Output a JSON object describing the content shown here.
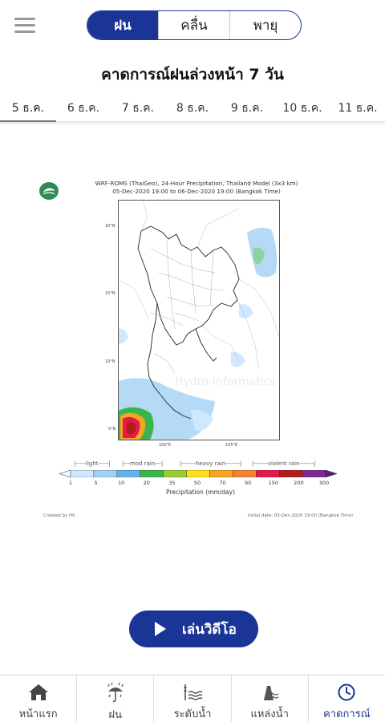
{
  "segments": [
    {
      "label": "ฝน",
      "active": true
    },
    {
      "label": "คลื่น",
      "active": false
    },
    {
      "label": "พายุ",
      "active": false
    }
  ],
  "page_title": "คาดการณ์ฝนล่วงหน้า 7 วัน",
  "date_tabs": [
    "5 ธ.ค.",
    "6 ธ.ค.",
    "7 ธ.ค.",
    "8 ธ.ค.",
    "9 ธ.ค.",
    "10 ธ.ค.",
    "11 ธ.ค."
  ],
  "active_date_index": 0,
  "figure": {
    "title_line1": "WRF-ROMS (ThaiGeo), 24-Hour Precipitation, Thailand Model (3x3 km)",
    "title_line2": "05-Dec-2020 19:00 to 06-Dec-2020 19:00 (Bangkok Time)",
    "lat_labels": [
      "20°N",
      "15°N",
      "10°N",
      "5°N"
    ],
    "lon_labels": [
      "100°E",
      "105°E"
    ],
    "watermark": "Hydro-Informatics Institute",
    "legend_categories": [
      "light",
      "mod rain",
      "heavy rain",
      "violent rain"
    ],
    "legend_ticks": [
      "1",
      "5",
      "10",
      "20",
      "35",
      "50",
      "70",
      "90",
      "150",
      "200",
      "300"
    ],
    "legend_colors": [
      "#cfe8ff",
      "#9fd0f5",
      "#63b3ea",
      "#3cb44b",
      "#9acd32",
      "#ffe119",
      "#f5a623",
      "#f58231",
      "#e6194b",
      "#b01d1d",
      "#7d2a96"
    ],
    "legend_caption": "Precipitation (mm/day)",
    "created_by": "Created by HII",
    "initial_date": "Initial date: 05-Dec-2020 19:00 (Bangkok Time)"
  },
  "play_button_label": "เล่นวิดีโอ",
  "bottom_nav": [
    {
      "label": "หน้าแรก",
      "icon": "home-icon",
      "active": false
    },
    {
      "label": "ฝน",
      "icon": "rain-icon",
      "active": false
    },
    {
      "label": "ระดับน้ำ",
      "icon": "water-level-icon",
      "active": false
    },
    {
      "label": "แหล่งน้ำ",
      "icon": "reservoir-icon",
      "active": false
    },
    {
      "label": "คาดการณ์",
      "icon": "clock-icon",
      "active": true
    }
  ],
  "colors": {
    "brand": "#1a3596",
    "gray_icon": "#9a9a9a"
  }
}
